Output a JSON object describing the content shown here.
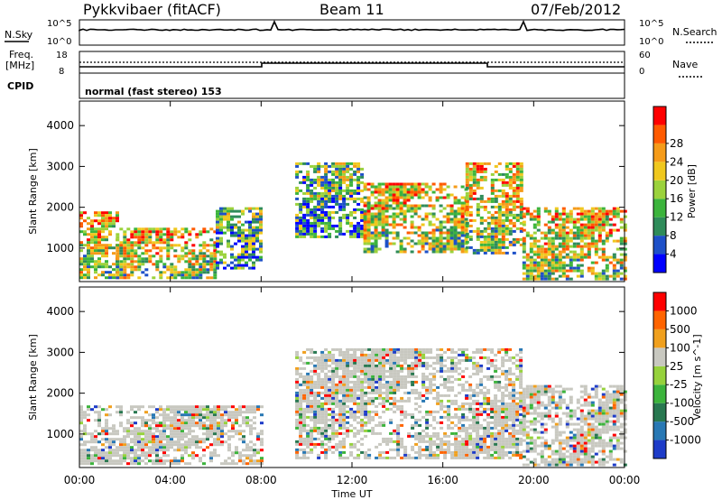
{
  "header": {
    "station": "Pykkvibaer (fitACF)",
    "beam": "Beam 11",
    "date": "07/Feb/2012"
  },
  "strip_labels": {
    "nsky": "N.Sky",
    "nsearch": "N.Search",
    "noise_ticks_left": [
      "10^5",
      "10^0"
    ],
    "noise_ticks_right": [
      "10^5",
      "10^0"
    ],
    "freq_line1": "Freq.",
    "freq_line2": "[MHz]",
    "freq_ticks": [
      "18",
      "8"
    ],
    "nave": "Nave",
    "nave_ticks": [
      "60",
      "0"
    ],
    "cpid": "CPID",
    "cpid_text": "normal (fast stereo) 153"
  },
  "chart_data": [
    {
      "type": "heatmap",
      "title": "",
      "xlabel": "Time UT",
      "ylabel": "Slant Range [km]",
      "x_ticks": [
        "00:00",
        "04:00",
        "08:00",
        "12:00",
        "16:00",
        "20:00",
        "00:00"
      ],
      "y_ticks": [
        "1000",
        "2000",
        "3000",
        "4000"
      ],
      "ylim": [
        180,
        4600
      ],
      "xlim_hours": [
        0,
        24
      ],
      "colorbar": {
        "label": "Power [dB]",
        "ticks": [
          "4",
          "8",
          "12",
          "16",
          "20",
          "24",
          "28"
        ],
        "colors": [
          "#0000ff",
          "#1e50c8",
          "#2f8c5a",
          "#3cb43c",
          "#9bd23c",
          "#f0c81e",
          "#f59b19",
          "#ff5a00",
          "#ff0000"
        ]
      },
      "regions": [
        {
          "x0": 0.0,
          "x1": 1.6,
          "y0": 300,
          "y1": 1900,
          "level": "mixed-high"
        },
        {
          "x0": 1.6,
          "x1": 6.0,
          "y0": 250,
          "y1": 1500,
          "level": "high"
        },
        {
          "x0": 6.0,
          "x1": 8.0,
          "y0": 500,
          "y1": 2000,
          "level": "mid"
        },
        {
          "x0": 9.5,
          "x1": 12.5,
          "y0": 1300,
          "y1": 3100,
          "level": "mid"
        },
        {
          "x0": 12.5,
          "x1": 17.0,
          "y0": 900,
          "y1": 2600,
          "level": "mixed-high"
        },
        {
          "x0": 17.0,
          "x1": 19.5,
          "y0": 900,
          "y1": 3100,
          "level": "mid-high"
        },
        {
          "x0": 19.5,
          "x1": 24.0,
          "y0": 250,
          "y1": 2000,
          "level": "high"
        }
      ]
    },
    {
      "type": "heatmap",
      "title": "",
      "xlabel": "Time UT",
      "ylabel": "Slant Range [km]",
      "x_ticks": [
        "00:00",
        "04:00",
        "08:00",
        "12:00",
        "16:00",
        "20:00",
        "00:00"
      ],
      "y_ticks": [
        "1000",
        "2000",
        "3000",
        "4000"
      ],
      "ylim": [
        180,
        4600
      ],
      "xlim_hours": [
        0,
        24
      ],
      "colorbar": {
        "label": "Velocity [m s^-1]",
        "ticks": [
          "1000",
          "500",
          "100",
          "25",
          "-25",
          "-100",
          "-500",
          "-1000"
        ],
        "colors": [
          "#1e3cc8",
          "#2878b4",
          "#287850",
          "#3cb43c",
          "#96d23c",
          "#c8c8c0",
          "#f0a01e",
          "#ff6400",
          "#ff0000"
        ]
      },
      "regions": [
        {
          "x0": 0.0,
          "x1": 8.0,
          "y0": 250,
          "y1": 1700,
          "level": "near-zero-mixed"
        },
        {
          "x0": 9.5,
          "x1": 19.5,
          "y0": 400,
          "y1": 3100,
          "level": "near-zero"
        },
        {
          "x0": 19.5,
          "x1": 24.0,
          "y0": 250,
          "y1": 2200,
          "level": "mixed"
        }
      ]
    }
  ]
}
